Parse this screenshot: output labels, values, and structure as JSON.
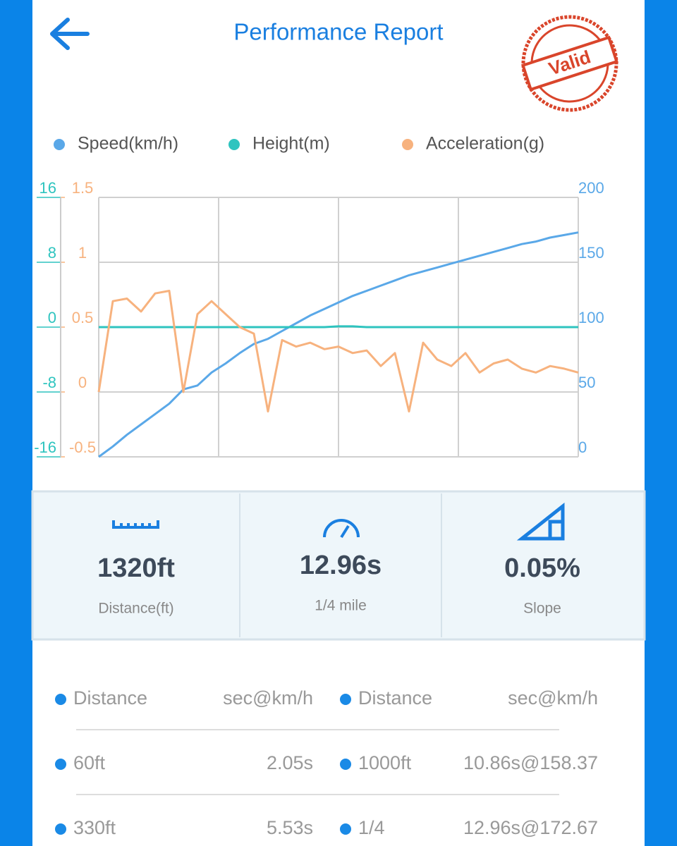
{
  "header": {
    "title": "Performance Report",
    "stamp": "Valid"
  },
  "chart_data": {
    "type": "line",
    "categories": [
      null,
      null,
      null,
      null,
      null,
      null,
      null,
      null,
      null,
      null,
      null,
      null,
      null,
      null,
      null,
      null,
      null,
      null,
      null,
      null,
      null,
      null,
      null,
      null,
      null,
      null,
      null,
      null,
      null,
      null,
      null,
      null,
      null,
      null,
      null
    ],
    "series": [
      {
        "name": "Speed(km/h)",
        "color": "#5aa8e8",
        "axis": "y2",
        "values": [
          0,
          8,
          17,
          25,
          33,
          41,
          52,
          55,
          65,
          72,
          80,
          87,
          91,
          97,
          103,
          109,
          114,
          119,
          124,
          128,
          132,
          136,
          140,
          143,
          146,
          149,
          152,
          155,
          158,
          161,
          164,
          166,
          169,
          171,
          173
        ]
      },
      {
        "name": "Height(m)",
        "color": "#2ec4bf",
        "axis": "y",
        "values": [
          0,
          0,
          0,
          0,
          0,
          0,
          0,
          0,
          0,
          0,
          0,
          0,
          0,
          0,
          0,
          0,
          0,
          0.1,
          0.1,
          0,
          0,
          0,
          0,
          0,
          0,
          0,
          0,
          0,
          0,
          0,
          0,
          0,
          0,
          0,
          0
        ]
      },
      {
        "name": "Acceleration(g)",
        "color": "#f7b27e",
        "axis": "y3",
        "values": [
          0,
          0.7,
          0.72,
          0.62,
          0.76,
          0.78,
          0,
          0.6,
          0.7,
          0.6,
          0.5,
          0.45,
          -0.15,
          0.4,
          0.35,
          0.38,
          0.33,
          0.35,
          0.3,
          0.32,
          0.2,
          0.3,
          -0.15,
          0.38,
          0.25,
          0.2,
          0.3,
          0.15,
          0.22,
          0.25,
          0.18,
          0.15,
          0.2,
          0.18,
          0.15
        ]
      }
    ],
    "ylim": [
      -16,
      16
    ],
    "yticks": [
      -16,
      -8,
      0,
      8,
      16
    ],
    "y3lim": [
      -0.5,
      1.5
    ],
    "y3ticks": [
      -0.5,
      0,
      0.5,
      1,
      1.5
    ],
    "y2lim": [
      0,
      200
    ],
    "y2ticks": [
      0,
      50,
      100,
      150,
      200
    ],
    "grid": true
  },
  "stats": [
    {
      "value": "1320ft",
      "label": "Distance(ft)"
    },
    {
      "value": "12.96s",
      "label": "1/4 mile"
    },
    {
      "value": "0.05%",
      "label": "Slope"
    }
  ],
  "table": {
    "header": [
      "Distance",
      "sec@km/h",
      "Distance",
      "sec@km/h"
    ],
    "rows": [
      [
        "60ft",
        "2.05s",
        "1000ft",
        "10.86s@158.37"
      ],
      [
        "330ft",
        "5.53s",
        "1/4",
        "12.96s@172.67"
      ]
    ]
  }
}
